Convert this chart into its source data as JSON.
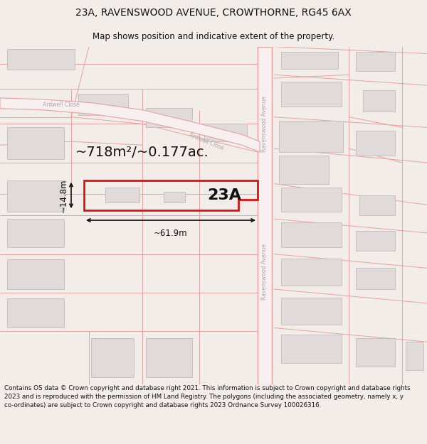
{
  "title_line1": "23A, RAVENSWOOD AVENUE, CROWTHORNE, RG45 6AX",
  "title_line2": "Map shows position and indicative extent of the property.",
  "area_text": "~718m²/~0.177ac.",
  "label_23A": "23A",
  "label_width": "~61.9m",
  "label_height": "~14.8m",
  "footer_text": "Contains OS data © Crown copyright and database right 2021. This information is subject to Crown copyright and database rights 2023 and is reproduced with the permission of HM Land Registry. The polygons (including the associated geometry, namely x, y co-ordinates) are subject to Crown copyright and database rights 2023 Ordnance Survey 100026316.",
  "bg_color": "#f2ede9",
  "map_bg": "#ffffff",
  "road_line": "#e8a0a0",
  "building_fill": "#e0dada",
  "building_outline": "#c8c0bc",
  "highlight_fill": "none",
  "highlight_outline": "#dd1111",
  "street_label_color": "#aaaaaa",
  "title_color": "#111111",
  "footer_color": "#111111"
}
